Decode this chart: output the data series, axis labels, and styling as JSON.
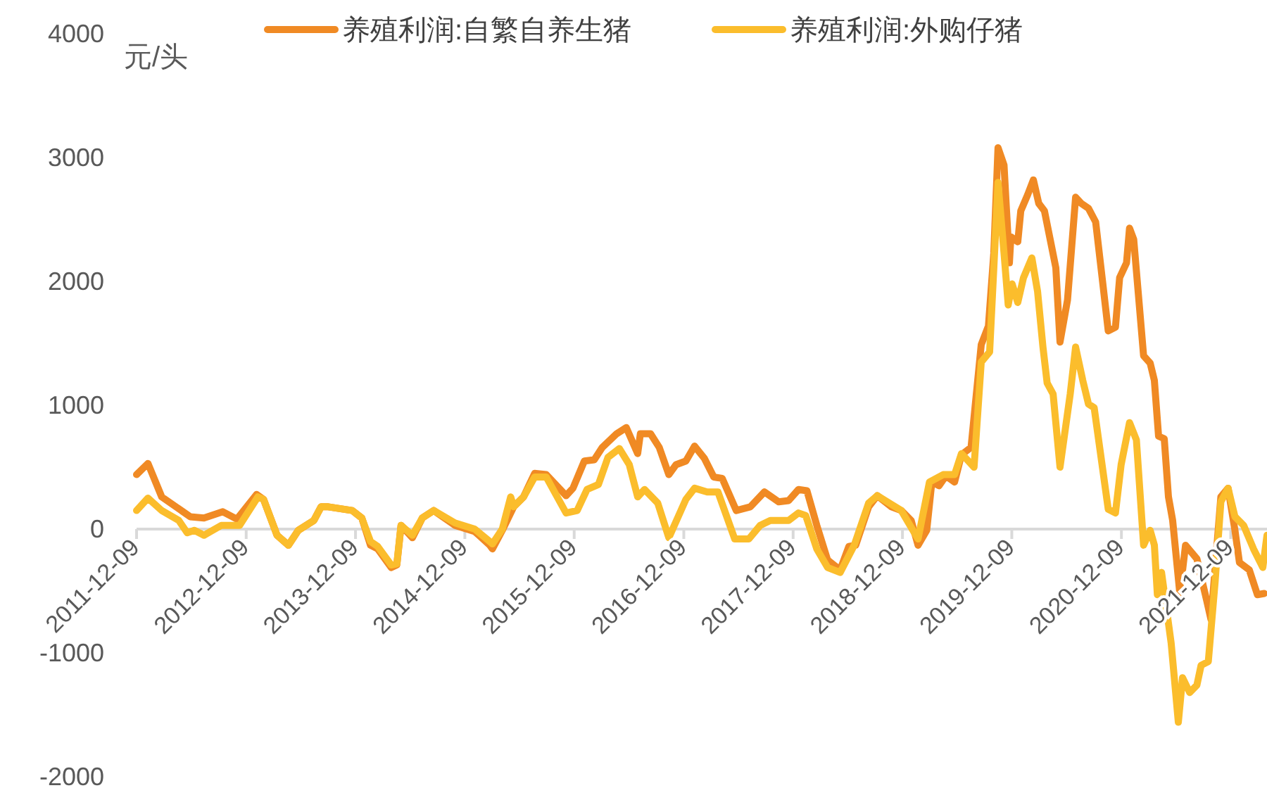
{
  "chart_data": {
    "type": "line",
    "ylabel": "元/头",
    "ylim": [
      -2000,
      4000
    ],
    "yticks": [
      -2000,
      -1000,
      0,
      1000,
      2000,
      3000,
      4000
    ],
    "xlim": [
      "2011-12-09",
      "2022-04-09"
    ],
    "xticks": [
      "2011-12-09",
      "2012-12-09",
      "2013-12-09",
      "2014-12-09",
      "2015-12-09",
      "2016-12-09",
      "2017-12-09",
      "2018-12-09",
      "2019-12-09",
      "2020-12-09",
      "2021-12-09"
    ],
    "grid": false,
    "legend": "top",
    "marker": "none",
    "line_style": "solid",
    "series": [
      {
        "name": "养殖利润:自繁自养生猪",
        "color": "#f08a24",
        "x": [
          "2011-12-09",
          "2012-01-16",
          "2012-03-02",
          "2012-06-05",
          "2012-07-21",
          "2012-09-22",
          "2012-11-08",
          "2013-01-13",
          "2013-02-05",
          "2013-03-22",
          "2013-04-29",
          "2013-06-01",
          "2013-07-23",
          "2013-08-16",
          "2013-09-09",
          "2013-11-28",
          "2013-12-30",
          "2014-01-28",
          "2014-02-21",
          "2014-04-07",
          "2014-04-26",
          "2014-05-10",
          "2014-06-17",
          "2014-07-20",
          "2014-08-27",
          "2014-11-06",
          "2015-01-11",
          "2015-01-25",
          "2015-03-02",
          "2015-03-11",
          "2015-04-13",
          "2015-05-21",
          "2015-06-23",
          "2015-07-30",
          "2015-09-07",
          "2015-11-12",
          "2015-12-05",
          "2016-01-12",
          "2016-02-14",
          "2016-03-12",
          "2016-04-29",
          "2016-05-31",
          "2016-07-08",
          "2016-07-17",
          "2016-08-20",
          "2016-09-18",
          "2016-10-20",
          "2016-11-13",
          "2016-12-16",
          "2017-01-14",
          "2017-02-16",
          "2017-03-19",
          "2017-04-16",
          "2017-06-02",
          "2017-07-19",
          "2017-09-04",
          "2017-10-22",
          "2017-11-24",
          "2017-12-27",
          "2018-01-24",
          "2018-02-26",
          "2018-04-03",
          "2018-05-15",
          "2018-06-13",
          "2018-07-06",
          "2018-08-18",
          "2018-09-16",
          "2018-11-02",
          "2018-12-05",
          "2019-01-07",
          "2019-01-30",
          "2019-02-28",
          "2019-03-17",
          "2019-04-10",
          "2019-05-03",
          "2019-06-01",
          "2019-06-24",
          "2019-07-26",
          "2019-08-29",
          "2019-09-22",
          "2019-10-10",
          "2019-10-24",
          "2019-11-13",
          "2019-12-01",
          "2019-12-06",
          "2019-12-29",
          "2020-01-08",
          "2020-01-31",
          "2020-02-19",
          "2020-03-08",
          "2020-03-27",
          "2020-04-20",
          "2020-05-04",
          "2020-05-18",
          "2020-06-12",
          "2020-07-09",
          "2020-07-28",
          "2020-08-21",
          "2020-09-14",
          "2020-10-07",
          "2020-10-26",
          "2020-11-19",
          "2020-12-03",
          "2020-12-26",
          "2021-01-05",
          "2021-01-19",
          "2021-02-21",
          "2021-03-15",
          "2021-03-29",
          "2021-04-12",
          "2021-05-01",
          "2021-05-15",
          "2021-05-29",
          "2021-06-22",
          "2021-07-11",
          "2021-08-18",
          "2021-09-20",
          "2021-10-04",
          "2021-11-06",
          "2021-11-30",
          "2021-12-23",
          "2022-01-07",
          "2022-02-09",
          "2022-03-08",
          "2022-03-31"
        ],
        "values": [
          440,
          530,
          260,
          100,
          90,
          140,
          80,
          280,
          240,
          -50,
          -130,
          -10,
          70,
          180,
          180,
          150,
          90,
          -130,
          -160,
          -310,
          -290,
          30,
          -70,
          90,
          150,
          30,
          -20,
          -50,
          -130,
          -160,
          -10,
          180,
          260,
          450,
          440,
          270,
          330,
          550,
          560,
          660,
          770,
          820,
          610,
          770,
          770,
          660,
          440,
          520,
          550,
          670,
          570,
          420,
          410,
          150,
          180,
          300,
          220,
          230,
          320,
          310,
          30,
          -250,
          -330,
          -140,
          -130,
          180,
          270,
          180,
          150,
          70,
          -130,
          -10,
          380,
          350,
          430,
          380,
          600,
          660,
          1490,
          1640,
          2230,
          3080,
          2940,
          2150,
          2360,
          2320,
          2570,
          2700,
          2820,
          2630,
          2570,
          2280,
          2110,
          1510,
          1850,
          2680,
          2630,
          2590,
          2480,
          2000,
          1600,
          1630,
          2030,
          2150,
          2430,
          2340,
          1400,
          1340,
          1200,
          750,
          730,
          260,
          70,
          -520,
          -130,
          -240,
          -580,
          -730,
          260,
          330,
          -10,
          -270,
          -330,
          -530,
          -520
        ]
      },
      {
        "name": "养殖利润:外购仔猪",
        "color": "#fbbd2c",
        "x": [
          "2011-12-09",
          "2012-01-16",
          "2012-03-02",
          "2012-04-28",
          "2012-05-26",
          "2012-06-19",
          "2012-07-21",
          "2012-09-17",
          "2012-11-17",
          "2013-01-17",
          "2013-02-05",
          "2013-03-22",
          "2013-04-29",
          "2013-06-01",
          "2013-07-23",
          "2013-08-16",
          "2013-09-09",
          "2013-11-28",
          "2013-12-30",
          "2014-01-28",
          "2014-02-21",
          "2014-04-07",
          "2014-04-26",
          "2014-05-10",
          "2014-06-17",
          "2014-07-20",
          "2014-08-27",
          "2014-11-06",
          "2015-01-11",
          "2015-03-02",
          "2015-03-11",
          "2015-04-13",
          "2015-05-11",
          "2015-05-21",
          "2015-06-23",
          "2015-07-30",
          "2015-09-07",
          "2015-11-12",
          "2015-12-19",
          "2016-01-21",
          "2016-02-28",
          "2016-03-31",
          "2016-05-08",
          "2016-06-10",
          "2016-07-08",
          "2016-07-31",
          "2016-09-13",
          "2016-10-20",
          "2016-12-16",
          "2017-01-14",
          "2017-02-25",
          "2017-04-02",
          "2017-05-28",
          "2017-07-14",
          "2017-08-21",
          "2017-09-24",
          "2017-11-24",
          "2017-12-27",
          "2018-01-20",
          "2018-02-26",
          "2018-04-03",
          "2018-05-15",
          "2018-07-01",
          "2018-08-18",
          "2018-09-16",
          "2018-12-05",
          "2019-01-30",
          "2019-03-09",
          "2019-04-24",
          "2019-06-01",
          "2019-06-24",
          "2019-08-05",
          "2019-08-29",
          "2019-09-26",
          "2019-10-10",
          "2019-10-24",
          "2019-11-13",
          "2019-11-27",
          "2019-12-10",
          "2019-12-29",
          "2020-01-17",
          "2020-02-14",
          "2020-03-04",
          "2020-03-22",
          "2020-04-05",
          "2020-04-25",
          "2020-05-18",
          "2020-06-21",
          "2020-07-09",
          "2020-08-02",
          "2020-08-21",
          "2020-09-09",
          "2020-10-26",
          "2020-11-19",
          "2020-12-08",
          "2021-01-05",
          "2021-01-28",
          "2021-02-21",
          "2021-03-15",
          "2021-03-29",
          "2021-04-08",
          "2021-04-22",
          "2021-05-24",
          "2021-06-17",
          "2021-07-01",
          "2021-07-25",
          "2021-08-18",
          "2021-09-01",
          "2021-09-25",
          "2021-10-18",
          "2021-11-06",
          "2021-11-30",
          "2021-12-23",
          "2022-01-21",
          "2022-02-23",
          "2022-03-26",
          "2022-04-09"
        ],
        "values": [
          150,
          250,
          150,
          70,
          -30,
          -10,
          -50,
          30,
          30,
          260,
          240,
          -50,
          -130,
          -10,
          70,
          180,
          180,
          150,
          90,
          -100,
          -140,
          -290,
          -280,
          30,
          -50,
          90,
          150,
          50,
          0,
          -100,
          -120,
          0,
          260,
          180,
          260,
          420,
          420,
          130,
          150,
          320,
          360,
          580,
          650,
          520,
          260,
          320,
          210,
          -70,
          240,
          330,
          300,
          300,
          -80,
          -80,
          30,
          70,
          70,
          130,
          110,
          -160,
          -310,
          -350,
          -130,
          210,
          270,
          150,
          -80,
          380,
          440,
          440,
          610,
          500,
          1350,
          1430,
          2110,
          2800,
          2230,
          1810,
          1980,
          1830,
          2030,
          2190,
          1920,
          1470,
          1180,
          1090,
          500,
          1090,
          1470,
          1200,
          1010,
          980,
          160,
          130,
          520,
          860,
          720,
          -130,
          -10,
          -130,
          -530,
          -350,
          -920,
          -1560,
          -1200,
          -1320,
          -1260,
          -1100,
          -1070,
          -420,
          220,
          330,
          100,
          30,
          -160,
          -310,
          -50
        ]
      }
    ]
  }
}
